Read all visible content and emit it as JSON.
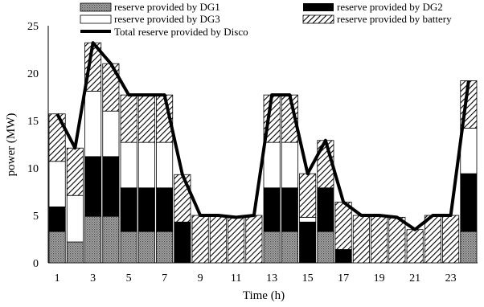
{
  "chart_data": {
    "type": "bar",
    "stacked": true,
    "xlabel": "Time (h)",
    "ylabel": "power (MW)",
    "ylim": [
      0,
      25
    ],
    "yticks": [
      0,
      5,
      10,
      15,
      20,
      25
    ],
    "xtick_labels": [
      "1",
      "3",
      "5",
      "7",
      "9",
      "11",
      "13",
      "15",
      "17",
      "19",
      "21",
      "23"
    ],
    "categories": [
      1,
      2,
      3,
      4,
      5,
      6,
      7,
      8,
      9,
      10,
      11,
      12,
      13,
      14,
      15,
      16,
      17,
      18,
      19,
      20,
      21,
      22,
      23,
      24
    ],
    "grid": false,
    "legend_position": "top",
    "series": [
      {
        "name": "reserve provided by DG1",
        "pattern": "dots-gray",
        "values": [
          3.3,
          2.2,
          4.9,
          4.9,
          3.3,
          3.3,
          3.3,
          0,
          0,
          0,
          0,
          0,
          3.3,
          3.3,
          0,
          3.3,
          0,
          0,
          0,
          0,
          0,
          0,
          0,
          3.3
        ]
      },
      {
        "name": "reserve provided by DG2",
        "pattern": "solid-black",
        "values": [
          2.6,
          0,
          6.3,
          6.3,
          4.6,
          4.6,
          4.6,
          4.3,
          0,
          0,
          0,
          0,
          4.6,
          4.6,
          4.3,
          4.6,
          1.4,
          0,
          0,
          0,
          0,
          0,
          0,
          6.1
        ]
      },
      {
        "name": "reserve provided by DG3",
        "pattern": "white",
        "values": [
          4.8,
          4.9,
          6.9,
          4.8,
          4.8,
          4.8,
          4.8,
          0,
          0,
          0,
          0,
          0,
          4.8,
          4.8,
          0.5,
          0,
          0,
          0,
          0,
          0,
          0,
          0,
          0,
          4.8
        ]
      },
      {
        "name": "reserve provided by battery",
        "pattern": "hatch",
        "values": [
          5.0,
          5.0,
          5.1,
          5.0,
          5.0,
          5.0,
          5.0,
          5.0,
          5.0,
          5.0,
          4.8,
          5.0,
          5.0,
          5.0,
          4.6,
          5.0,
          5.0,
          5.0,
          5.0,
          4.8,
          3.5,
          5.0,
          5.0,
          5.0
        ]
      }
    ],
    "line_series": {
      "name": "Total reserve provided by Disco",
      "values": [
        15.7,
        12.1,
        23.2,
        21.0,
        17.7,
        17.7,
        17.7,
        9.3,
        5.0,
        5.0,
        4.8,
        5.0,
        17.7,
        17.7,
        9.4,
        12.9,
        6.4,
        5.0,
        5.0,
        4.8,
        3.5,
        5.0,
        5.0,
        19.2
      ]
    }
  }
}
